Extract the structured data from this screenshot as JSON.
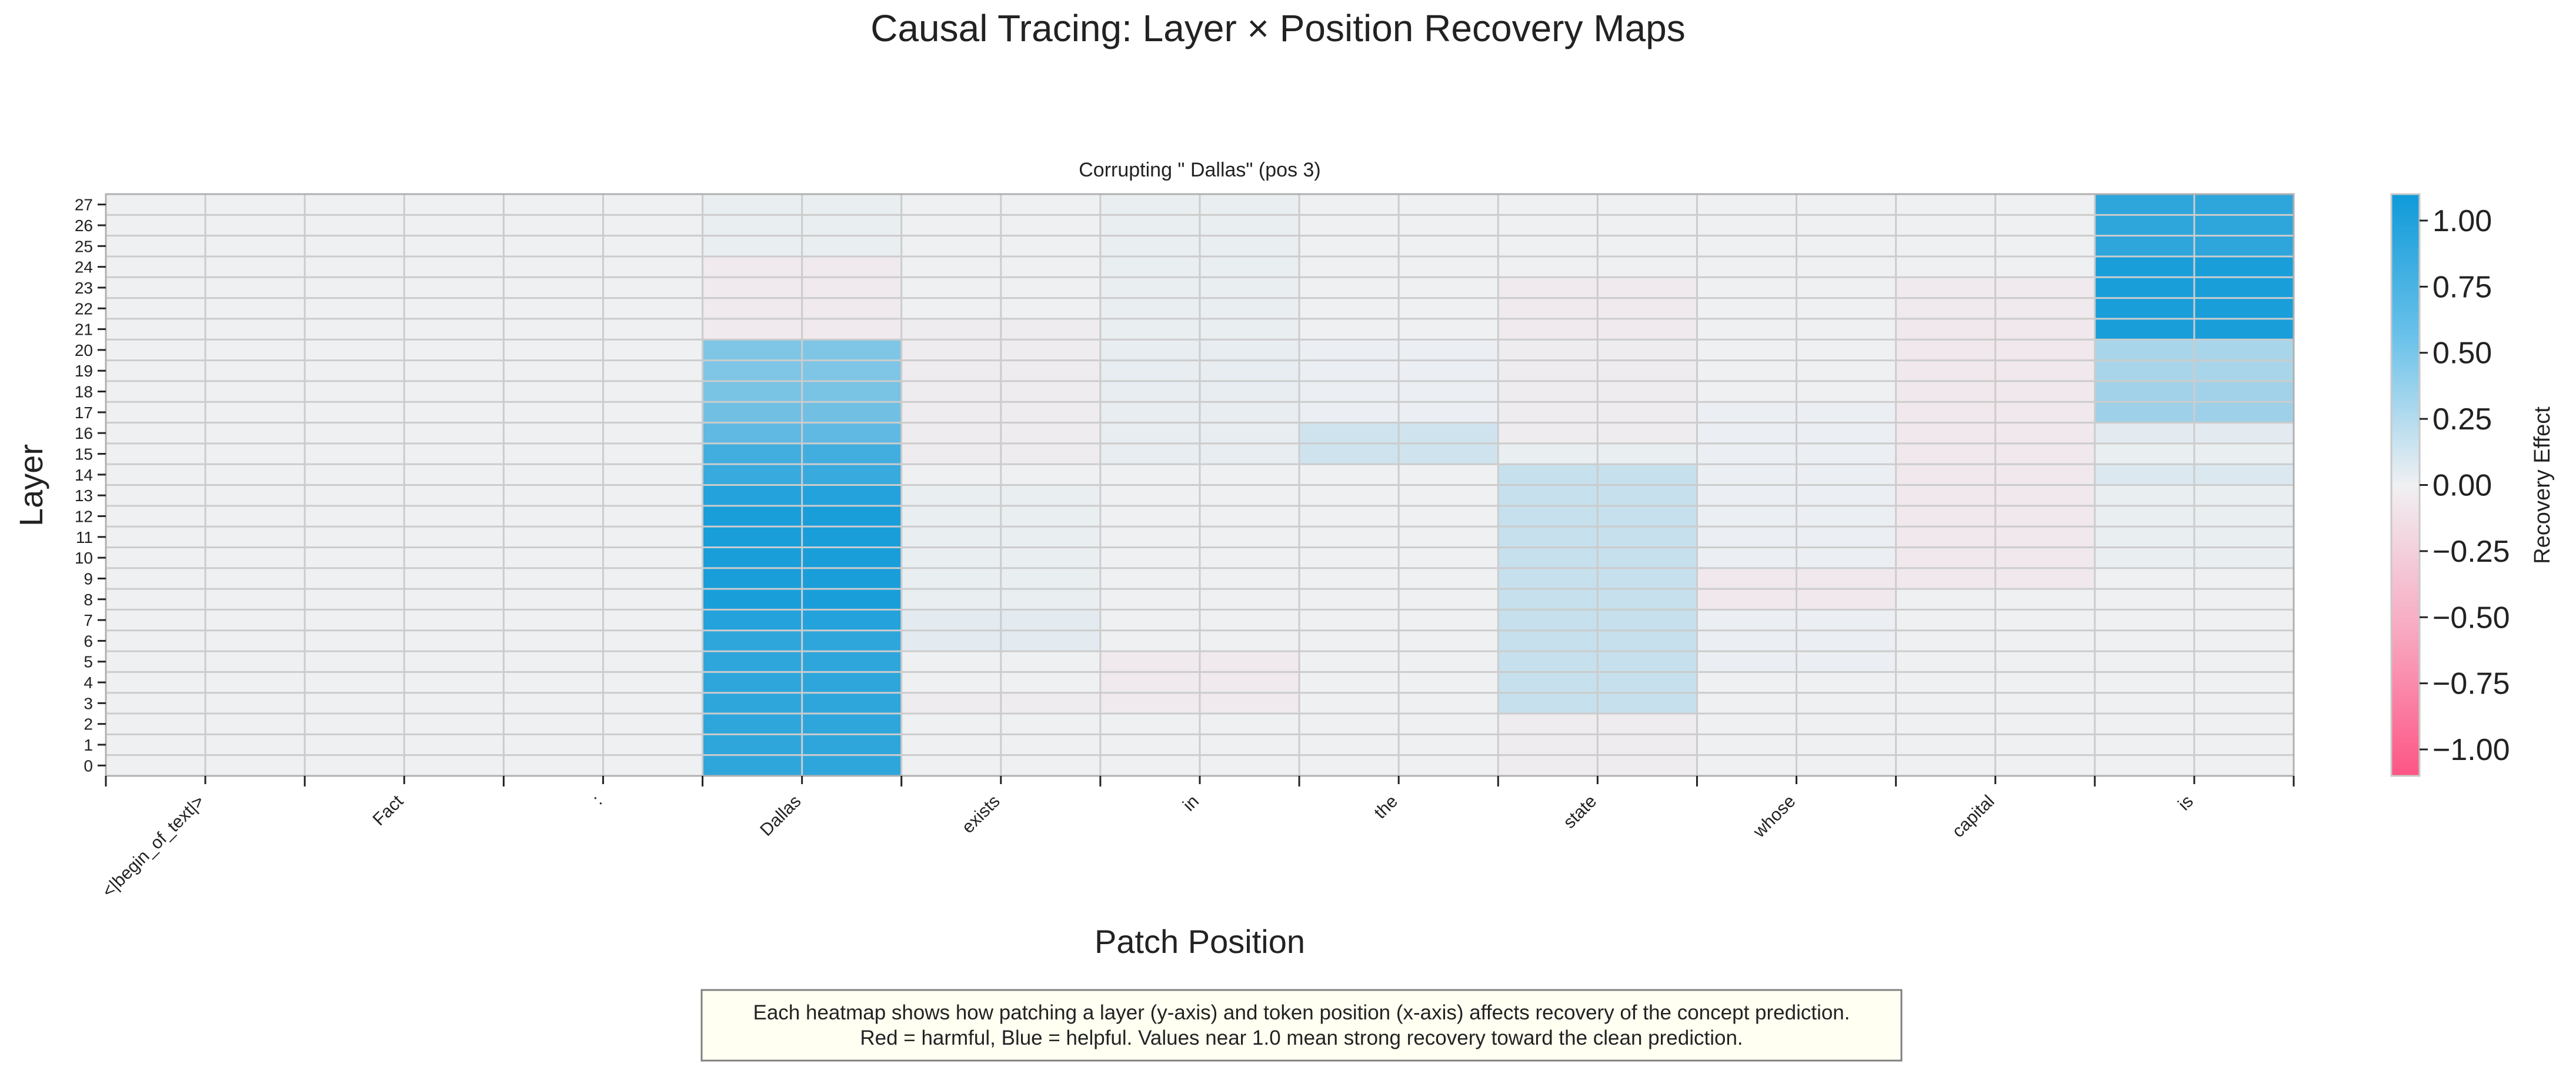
{
  "figure": {
    "suptitle": "Causal Tracing: Layer × Position Recovery Maps",
    "caption_line1": "Each heatmap shows how patching a layer (y-axis) and token position (x-axis) affects recovery of the concept prediction.",
    "caption_line2": "Red = harmful, Blue = helpful. Values near 1.0 mean strong recovery toward the clean prediction."
  },
  "chart_data": {
    "type": "heatmap",
    "title": "Corrupting \" Dallas\" (pos 3)",
    "xlabel": "Patch Position",
    "ylabel": "Layer",
    "colorbar_label": "Recovery Effect",
    "colorbar_ticks": [
      "1.00",
      "0.75",
      "0.50",
      "0.25",
      "0.00",
      "−0.25",
      "−0.50",
      "−0.75",
      "−1.00"
    ],
    "colorbar_tick_values": [
      1.0,
      0.75,
      0.5,
      0.25,
      0.0,
      -0.25,
      -0.5,
      -0.75,
      -1.0
    ],
    "vmin": -1.1,
    "vmax": 1.1,
    "colors": {
      "positive": "#0f9ad9",
      "neutral": "#eff0f2",
      "negative": "#fd5585",
      "grid": "#cccccc"
    },
    "x_tokens": [
      "<|begin_of_text|>",
      "Fact",
      ":",
      "Dallas",
      "exists",
      "in",
      "the",
      "state",
      "whose",
      "capital",
      "is"
    ],
    "y_layers": [
      27,
      26,
      25,
      24,
      23,
      22,
      21,
      20,
      19,
      18,
      17,
      16,
      15,
      14,
      13,
      12,
      11,
      10,
      9,
      8,
      7,
      6,
      5,
      4,
      3,
      2,
      1,
      0
    ],
    "values_note": "rows ordered top-to-bottom as y_layers (27 → 0); columns ordered as x_tokens",
    "values": [
      [
        0.0,
        0.0,
        0.0,
        0.03,
        0.0,
        0.03,
        0.0,
        0.0,
        0.0,
        0.0,
        0.95
      ],
      [
        0.0,
        0.0,
        0.0,
        0.03,
        0.0,
        0.03,
        0.0,
        0.0,
        0.0,
        0.0,
        0.95
      ],
      [
        0.0,
        0.0,
        0.0,
        0.03,
        0.0,
        0.03,
        0.0,
        0.0,
        0.0,
        0.0,
        0.95
      ],
      [
        0.0,
        0.0,
        0.0,
        -0.05,
        0.0,
        0.03,
        0.0,
        0.0,
        0.0,
        0.0,
        1.05
      ],
      [
        0.0,
        0.0,
        0.0,
        -0.05,
        0.0,
        0.03,
        0.0,
        -0.04,
        0.0,
        -0.04,
        1.05
      ],
      [
        0.0,
        0.0,
        0.0,
        -0.05,
        0.0,
        0.03,
        0.0,
        -0.04,
        0.0,
        -0.05,
        1.05
      ],
      [
        0.0,
        0.0,
        0.0,
        -0.05,
        -0.03,
        0.03,
        0.0,
        -0.04,
        0.0,
        -0.06,
        1.05
      ],
      [
        0.0,
        0.0,
        0.0,
        0.55,
        -0.03,
        0.04,
        0.02,
        -0.03,
        0.0,
        -0.06,
        0.35
      ],
      [
        0.0,
        0.0,
        0.0,
        0.55,
        -0.03,
        0.04,
        0.02,
        -0.03,
        0.0,
        -0.06,
        0.35
      ],
      [
        0.0,
        0.0,
        0.0,
        0.58,
        -0.03,
        0.04,
        0.02,
        -0.03,
        0.0,
        -0.06,
        0.38
      ],
      [
        0.0,
        0.0,
        0.0,
        0.62,
        -0.03,
        0.04,
        0.02,
        -0.03,
        0.02,
        -0.06,
        0.4
      ],
      [
        0.0,
        0.0,
        0.0,
        0.7,
        -0.03,
        0.04,
        0.16,
        -0.03,
        0.02,
        -0.06,
        0.06
      ],
      [
        0.0,
        0.0,
        0.0,
        0.85,
        -0.03,
        0.04,
        0.16,
        0.03,
        0.02,
        -0.06,
        0.03
      ],
      [
        0.0,
        0.0,
        0.0,
        0.9,
        0.0,
        0.0,
        0.0,
        0.2,
        0.02,
        -0.06,
        0.1
      ],
      [
        0.0,
        0.0,
        0.0,
        1.0,
        0.03,
        0.0,
        0.0,
        0.2,
        0.02,
        -0.06,
        0.03
      ],
      [
        0.0,
        0.0,
        0.0,
        1.05,
        0.03,
        0.0,
        0.0,
        0.2,
        0.02,
        -0.06,
        0.03
      ],
      [
        0.0,
        0.0,
        0.0,
        1.05,
        0.03,
        0.0,
        0.0,
        0.2,
        0.02,
        -0.06,
        0.03
      ],
      [
        0.0,
        0.0,
        0.0,
        1.05,
        0.03,
        0.0,
        0.0,
        0.2,
        0.02,
        -0.06,
        0.03
      ],
      [
        0.0,
        0.0,
        0.0,
        1.05,
        0.03,
        0.0,
        0.0,
        0.2,
        -0.06,
        -0.06,
        0.0
      ],
      [
        0.0,
        0.0,
        0.0,
        1.05,
        0.03,
        0.0,
        0.0,
        0.2,
        -0.06,
        0.0,
        0.0
      ],
      [
        0.0,
        0.0,
        0.0,
        1.0,
        0.06,
        0.0,
        0.0,
        0.2,
        0.02,
        0.0,
        0.0
      ],
      [
        0.0,
        0.0,
        0.0,
        0.95,
        0.06,
        0.0,
        0.0,
        0.2,
        0.02,
        0.0,
        0.0
      ],
      [
        0.0,
        0.0,
        0.0,
        0.95,
        0.0,
        -0.04,
        0.0,
        0.2,
        0.02,
        0.0,
        0.0
      ],
      [
        0.0,
        0.0,
        0.0,
        0.95,
        0.0,
        -0.04,
        0.0,
        0.2,
        0.0,
        0.0,
        0.0
      ],
      [
        0.0,
        0.0,
        0.0,
        0.95,
        -0.03,
        -0.04,
        0.0,
        0.2,
        0.0,
        0.0,
        0.0
      ],
      [
        0.0,
        0.0,
        0.0,
        0.95,
        0.0,
        0.0,
        0.0,
        -0.03,
        0.0,
        0.0,
        0.0
      ],
      [
        0.0,
        0.0,
        0.0,
        0.95,
        0.0,
        0.0,
        0.0,
        -0.03,
        0.0,
        0.0,
        0.0
      ],
      [
        0.0,
        0.0,
        0.0,
        0.95,
        0.0,
        0.0,
        0.0,
        -0.03,
        0.0,
        0.0,
        0.0
      ]
    ]
  }
}
